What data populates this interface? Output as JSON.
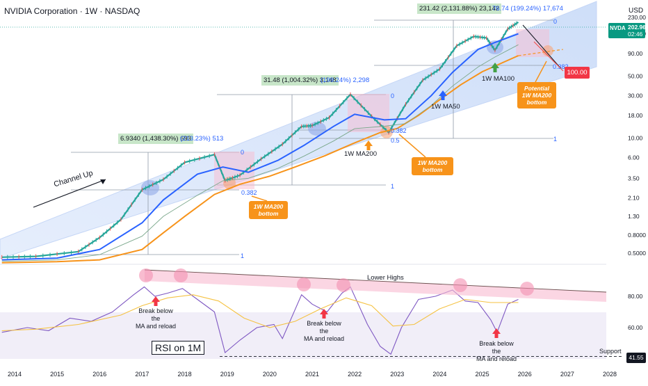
{
  "header": {
    "title": "NVIDIA Corporation · 1W · NASDAQ",
    "currency": "USD"
  },
  "price_tag": {
    "symbol": "NVDA",
    "price": "202.96",
    "countdown": "02:46",
    "color": "#089981"
  },
  "target_tag": {
    "label": "100.00",
    "color": "#f23645"
  },
  "colors": {
    "candles": "#26a69a",
    "ma50": "#2962ff",
    "ma100": "#7ba88c",
    "ma200": "#f7931a",
    "rsi": "#7e57c2",
    "rsi_ma": "#f5c242",
    "channel": "#d6e4fb",
    "fib": "#8f9aa7",
    "pullback_zone": "#f8bbd0",
    "highlight_circle_blue": "#8fa9e8",
    "highlight_circle_red": "#f48fb1"
  },
  "annotations": {
    "channel_up": "Channel Up",
    "measure_1": "6.9340 (1,438.30%) 693",
    "measure_1b": "(213.23%) 513",
    "measure_2": "31.48 (1,004.32%) 3,148",
    "measure_2b": "(199.24%) 2,298",
    "measure_3": "231.42 (2,131.88%) 23,142",
    "measure_3b": "76.74 (199.24%) 17,674",
    "ma200_bottom_1": "1W MA200\nbottom",
    "ma200_bottom_2": "1W MA200\nbottom",
    "ma200_bottom_3": "Potential\n1W MA200\nbottom",
    "label_ma200": "1W MA200",
    "label_ma50": "1W MA50",
    "label_ma100": "1W MA100",
    "rsi_title": "RSI on 1M",
    "lower_highs": "Lower Highs",
    "break_1": "Break below the\nMA and reload",
    "break_2": "Break below the\nMA and reload",
    "break_3": "Break below the\nMA and reload",
    "support": "Support",
    "rsi_support_value": "41.55"
  },
  "chart_data": [
    {
      "type": "line",
      "title": "NVIDIA Corporation · 1W · NASDAQ",
      "yscale": "log",
      "ylabel": "USD",
      "y_ticks": [
        0.5,
        0.8,
        1.3,
        2.1,
        3.5,
        6.0,
        10.0,
        18.0,
        30.0,
        50.0,
        90.0,
        150.0,
        230.0
      ],
      "x_ticks": [
        "2014",
        "2015",
        "2016",
        "2017",
        "2018",
        "2019",
        "2020",
        "2021",
        "2022",
        "2023",
        "2024",
        "2025",
        "2026",
        "2027",
        "2028"
      ],
      "last_price": 202.96,
      "series": [
        {
          "name": "NVDA",
          "x": [
            2013.7,
            2014.5,
            2015.5,
            2016.0,
            2016.5,
            2017.0,
            2017.5,
            2018.0,
            2018.7,
            2018.95,
            2019.3,
            2019.8,
            2020.3,
            2020.75,
            2021.0,
            2021.4,
            2021.9,
            2022.4,
            2022.8,
            2023.2,
            2023.6,
            2024.0,
            2024.4,
            2024.8,
            2025.1,
            2025.3,
            2025.6,
            2025.85
          ],
          "values": [
            0.45,
            0.46,
            0.52,
            0.75,
            1.2,
            2.6,
            3.4,
            5.3,
            6.5,
            3.3,
            3.8,
            5.8,
            8.5,
            13.5,
            13.8,
            17.0,
            31.0,
            17.5,
            11.5,
            24.0,
            45.0,
            60.0,
            110.0,
            140.0,
            135.0,
            98.0,
            170.0,
            202.96
          ]
        },
        {
          "name": "1W MA50",
          "x": [
            2013.7,
            2015.0,
            2016.0,
            2017.0,
            2017.5,
            2018.3,
            2018.9,
            2019.5,
            2020.2,
            2020.8,
            2021.5,
            2022.0,
            2022.7,
            2023.2,
            2023.8,
            2024.3,
            2024.9,
            2025.3,
            2025.85
          ],
          "values": [
            0.42,
            0.44,
            0.55,
            1.1,
            2.0,
            3.9,
            4.7,
            4.1,
            5.6,
            8.2,
            13.5,
            18.5,
            16.0,
            16.5,
            30.0,
            55.0,
            100.0,
            120.0,
            150.0
          ]
        },
        {
          "name": "1W MA200",
          "x": [
            2013.7,
            2015.0,
            2016.0,
            2017.0,
            2017.5,
            2018.0,
            2018.7,
            2019.3,
            2020.0,
            2020.6,
            2021.3,
            2022.0,
            2022.6,
            2023.0,
            2023.5,
            2024.0,
            2024.5,
            2025.0,
            2025.85
          ],
          "values": [
            0.39,
            0.4,
            0.42,
            0.55,
            0.85,
            1.3,
            2.3,
            3.0,
            3.7,
            4.7,
            6.3,
            8.8,
            11.5,
            12.8,
            18.0,
            27.0,
            40.0,
            56.0,
            85.0
          ]
        }
      ],
      "fib_levels": [
        {
          "cycle": 1,
          "levels": [
            0,
            0.382,
            1
          ]
        },
        {
          "cycle": 2,
          "levels": [
            0,
            0.382,
            0.5,
            1
          ]
        },
        {
          "cycle": 3,
          "levels": [
            0,
            0.382,
            1
          ]
        }
      ],
      "target": 100.0
    },
    {
      "type": "line",
      "title": "RSI on 1M",
      "y_ticks": [
        60.0,
        80.0,
        41.55
      ],
      "support": 41.55,
      "series": [
        {
          "name": "RSI",
          "x": [
            2013.7,
            2014.3,
            2014.8,
            2015.3,
            2015.8,
            2016.3,
            2016.8,
            2017.05,
            2017.3,
            2017.6,
            2017.95,
            2018.3,
            2018.7,
            2018.95,
            2019.3,
            2019.7,
            2020.1,
            2020.3,
            2020.75,
            2021.0,
            2021.35,
            2021.7,
            2021.9,
            2022.3,
            2022.6,
            2022.85,
            2023.1,
            2023.5,
            2023.9,
            2024.3,
            2024.6,
            2024.9,
            2025.2,
            2025.35,
            2025.6,
            2025.85
          ],
          "values": [
            57,
            60,
            58,
            66,
            64,
            70,
            81,
            86,
            80,
            82,
            85,
            78,
            70,
            44,
            52,
            60,
            62,
            53,
            81,
            75,
            70,
            82,
            86,
            62,
            48,
            43,
            60,
            78,
            80,
            84,
            77,
            76,
            65,
            57,
            75,
            78
          ]
        },
        {
          "name": "RSI MA",
          "x": [
            2013.7,
            2014.5,
            2015.5,
            2016.5,
            2017.0,
            2017.6,
            2018.2,
            2018.8,
            2019.4,
            2020.0,
            2020.6,
            2021.2,
            2021.8,
            2022.4,
            2022.9,
            2023.4,
            2024.0,
            2024.6,
            2025.2,
            2025.85
          ],
          "values": [
            58,
            59,
            62,
            68,
            74,
            79,
            81,
            77,
            66,
            60,
            64,
            72,
            79,
            74,
            61,
            62,
            72,
            78,
            76,
            76
          ]
        }
      ]
    }
  ]
}
